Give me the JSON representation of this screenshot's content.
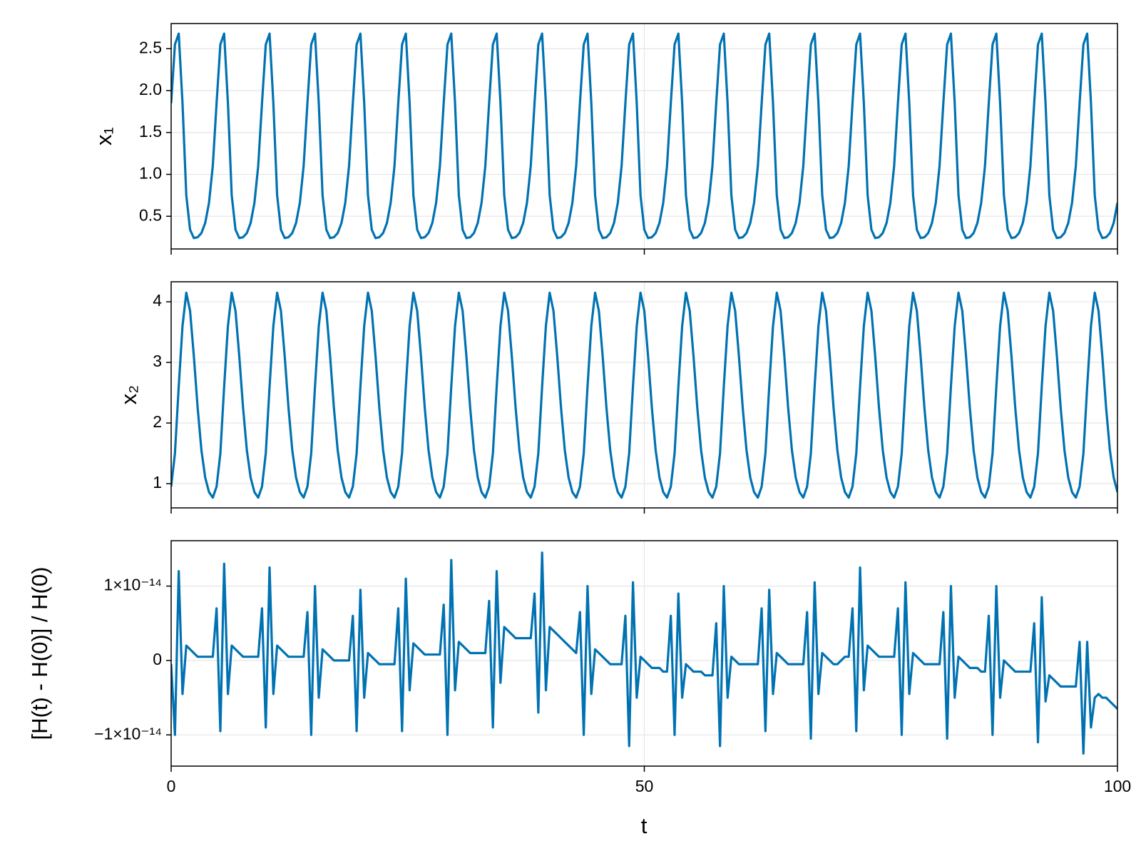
{
  "chart_data": {
    "type": "line",
    "xlabel": "t",
    "xlim": [
      0,
      100
    ],
    "xticks": [
      0,
      50,
      100
    ],
    "grid": true,
    "x": [
      0,
      0.4,
      0.8,
      1.2,
      1.6,
      2,
      2.4,
      2.8,
      3.2,
      3.6,
      4,
      4.4,
      4.8,
      5.2,
      5.6,
      6,
      6.4,
      6.8,
      7.2,
      7.6,
      8,
      8.4,
      8.8,
      9.2,
      9.6,
      10,
      10.4,
      10.8,
      11.2,
      11.6,
      12,
      12.4,
      12.8,
      13.2,
      13.6,
      14,
      14.4,
      14.8,
      15.2,
      15.6,
      16,
      16.4,
      16.8,
      17.2,
      17.6,
      18,
      18.4,
      18.8,
      19.2,
      19.6,
      20,
      20.4,
      20.8,
      21.2,
      21.6,
      22,
      22.4,
      22.8,
      23.2,
      23.6,
      24,
      24.4,
      24.8,
      25.2,
      25.6,
      26,
      26.4,
      26.8,
      27.2,
      27.6,
      28,
      28.4,
      28.8,
      29.2,
      29.6,
      30,
      30.4,
      30.8,
      31.2,
      31.6,
      32,
      32.4,
      32.8,
      33.2,
      33.6,
      34,
      34.4,
      34.8,
      35.2,
      35.6,
      36,
      36.4,
      36.8,
      37.2,
      37.6,
      38,
      38.4,
      38.8,
      39.2,
      39.6,
      40,
      40.4,
      40.8,
      41.2,
      41.6,
      42,
      42.4,
      42.8,
      43.2,
      43.6,
      44,
      44.4,
      44.8,
      45.2,
      45.6,
      46,
      46.4,
      46.8,
      47.2,
      47.6,
      48,
      48.4,
      48.8,
      49.2,
      49.6,
      50,
      50.4,
      50.8,
      51.2,
      51.6,
      52,
      52.4,
      52.8,
      53.2,
      53.6,
      54,
      54.4,
      54.8,
      55.2,
      55.6,
      56,
      56.4,
      56.8,
      57.2,
      57.6,
      58,
      58.4,
      58.8,
      59.2,
      59.6,
      60,
      60.4,
      60.8,
      61.2,
      61.6,
      62,
      62.4,
      62.8,
      63.2,
      63.6,
      64,
      64.4,
      64.8,
      65.2,
      65.6,
      66,
      66.4,
      66.8,
      67.2,
      67.6,
      68,
      68.4,
      68.8,
      69.2,
      69.6,
      70,
      70.4,
      70.8,
      71.2,
      71.6,
      72,
      72.4,
      72.8,
      73.2,
      73.6,
      74,
      74.4,
      74.8,
      75.2,
      75.6,
      76,
      76.4,
      76.8,
      77.2,
      77.6,
      78,
      78.4,
      78.8,
      79.2,
      79.6,
      80,
      80.4,
      80.8,
      81.2,
      81.6,
      82,
      82.4,
      82.8,
      83.2,
      83.6,
      84,
      84.4,
      84.8,
      85.2,
      85.6,
      86,
      86.4,
      86.8,
      87.2,
      87.6,
      88,
      88.4,
      88.8,
      89.2,
      89.6,
      90,
      90.4,
      90.8,
      91.2,
      91.6,
      92,
      92.4,
      92.8,
      93.2,
      93.6,
      94,
      94.4,
      94.8,
      95.2,
      95.6,
      96,
      96.4,
      96.8,
      97.2,
      97.6,
      98,
      98.4,
      98.8,
      99.2,
      99.6,
      100
    ],
    "series": [
      {
        "ylabel": "x₁",
        "color": "#0072b2",
        "ylim": [
          0.11,
          2.8
        ],
        "yticks": [
          0.5,
          {
            "value": 1,
            "label": "1.0"
          },
          1.5,
          {
            "value": 2,
            "label": "2.0"
          },
          2.5
        ],
        "values": [
          1.85,
          2.55,
          2.68,
          1.85,
          0.75,
          0.34,
          0.24,
          0.25,
          0.3,
          0.42,
          0.66,
          1.1,
          1.85,
          2.55,
          2.68,
          1.85,
          0.75,
          0.34,
          0.24,
          0.25,
          0.3,
          0.42,
          0.66,
          1.1,
          1.85,
          2.55,
          2.68,
          1.85,
          0.75,
          0.34,
          0.24,
          0.25,
          0.3,
          0.42,
          0.66,
          1.1,
          1.85,
          2.55,
          2.68,
          1.85,
          0.75,
          0.34,
          0.24,
          0.25,
          0.3,
          0.42,
          0.66,
          1.1,
          1.85,
          2.55,
          2.68,
          1.85,
          0.75,
          0.34,
          0.24,
          0.25,
          0.3,
          0.42,
          0.66,
          1.1,
          1.85,
          2.55,
          2.68,
          1.85,
          0.75,
          0.34,
          0.24,
          0.25,
          0.3,
          0.42,
          0.66,
          1.1,
          1.85,
          2.55,
          2.68,
          1.85,
          0.75,
          0.34,
          0.24,
          0.25,
          0.3,
          0.42,
          0.66,
          1.1,
          1.85,
          2.55,
          2.68,
          1.85,
          0.75,
          0.34,
          0.24,
          0.25,
          0.3,
          0.42,
          0.66,
          1.1,
          1.85,
          2.55,
          2.68,
          1.85,
          0.75,
          0.34,
          0.24,
          0.25,
          0.3,
          0.42,
          0.66,
          1.1,
          1.85,
          2.55,
          2.68,
          1.85,
          0.75,
          0.34,
          0.24,
          0.25,
          0.3,
          0.42,
          0.66,
          1.1,
          1.85,
          2.55,
          2.68,
          1.85,
          0.75,
          0.34,
          0.24,
          0.25,
          0.3,
          0.42,
          0.66,
          1.1,
          1.85,
          2.55,
          2.68,
          1.85,
          0.75,
          0.34,
          0.24,
          0.25,
          0.3,
          0.42,
          0.66,
          1.1,
          1.85,
          2.55,
          2.68,
          1.85,
          0.75,
          0.34,
          0.24,
          0.25,
          0.3,
          0.42,
          0.66,
          1.1,
          1.85,
          2.55,
          2.68,
          1.85,
          0.75,
          0.34,
          0.24,
          0.25,
          0.3,
          0.42,
          0.66,
          1.1,
          1.85,
          2.55,
          2.68,
          1.85,
          0.75,
          0.34,
          0.24,
          0.25,
          0.3,
          0.42,
          0.66,
          1.1,
          1.85,
          2.55,
          2.68,
          1.85,
          0.75,
          0.34,
          0.24,
          0.25,
          0.3,
          0.42,
          0.66,
          1.1,
          1.85,
          2.55,
          2.68,
          1.85,
          0.75,
          0.34,
          0.24,
          0.25,
          0.3,
          0.42,
          0.66,
          1.1,
          1.85,
          2.55,
          2.68,
          1.85,
          0.75,
          0.34,
          0.24,
          0.25,
          0.3,
          0.42,
          0.66,
          1.1,
          1.85,
          2.55,
          2.68,
          1.85,
          0.75,
          0.34,
          0.24,
          0.25,
          0.3,
          0.42,
          0.66,
          1.1,
          1.85,
          2.55,
          2.68,
          1.85,
          0.75,
          0.34,
          0.24,
          0.25,
          0.3,
          0.42,
          0.66,
          1.1,
          1.85,
          2.55,
          2.68,
          1.85,
          0.75,
          0.34,
          0.24,
          0.25,
          0.3,
          0.42,
          0.66
        ]
      },
      {
        "ylabel": "x₂",
        "color": "#0072b2",
        "ylim": [
          0.6,
          4.33
        ],
        "yticks": [
          1,
          2,
          3,
          4
        ],
        "values": [
          0.95,
          1.5,
          2.6,
          3.6,
          4.15,
          3.85,
          3.1,
          2.25,
          1.55,
          1.1,
          0.86,
          0.77,
          0.95,
          1.5,
          2.6,
          3.6,
          4.15,
          3.85,
          3.1,
          2.25,
          1.55,
          1.1,
          0.86,
          0.77,
          0.95,
          1.5,
          2.6,
          3.6,
          4.15,
          3.85,
          3.1,
          2.25,
          1.55,
          1.1,
          0.86,
          0.77,
          0.95,
          1.5,
          2.6,
          3.6,
          4.15,
          3.85,
          3.1,
          2.25,
          1.55,
          1.1,
          0.86,
          0.77,
          0.95,
          1.5,
          2.6,
          3.6,
          4.15,
          3.85,
          3.1,
          2.25,
          1.55,
          1.1,
          0.86,
          0.77,
          0.95,
          1.5,
          2.6,
          3.6,
          4.15,
          3.85,
          3.1,
          2.25,
          1.55,
          1.1,
          0.86,
          0.77,
          0.95,
          1.5,
          2.6,
          3.6,
          4.15,
          3.85,
          3.1,
          2.25,
          1.55,
          1.1,
          0.86,
          0.77,
          0.95,
          1.5,
          2.6,
          3.6,
          4.15,
          3.85,
          3.1,
          2.25,
          1.55,
          1.1,
          0.86,
          0.77,
          0.95,
          1.5,
          2.6,
          3.6,
          4.15,
          3.85,
          3.1,
          2.25,
          1.55,
          1.1,
          0.86,
          0.77,
          0.95,
          1.5,
          2.6,
          3.6,
          4.15,
          3.85,
          3.1,
          2.25,
          1.55,
          1.1,
          0.86,
          0.77,
          0.95,
          1.5,
          2.6,
          3.6,
          4.15,
          3.85,
          3.1,
          2.25,
          1.55,
          1.1,
          0.86,
          0.77,
          0.95,
          1.5,
          2.6,
          3.6,
          4.15,
          3.85,
          3.1,
          2.25,
          1.55,
          1.1,
          0.86,
          0.77,
          0.95,
          1.5,
          2.6,
          3.6,
          4.15,
          3.85,
          3.1,
          2.25,
          1.55,
          1.1,
          0.86,
          0.77,
          0.95,
          1.5,
          2.6,
          3.6,
          4.15,
          3.85,
          3.1,
          2.25,
          1.55,
          1.1,
          0.86,
          0.77,
          0.95,
          1.5,
          2.6,
          3.6,
          4.15,
          3.85,
          3.1,
          2.25,
          1.55,
          1.1,
          0.86,
          0.77,
          0.95,
          1.5,
          2.6,
          3.6,
          4.15,
          3.85,
          3.1,
          2.25,
          1.55,
          1.1,
          0.86,
          0.77,
          0.95,
          1.5,
          2.6,
          3.6,
          4.15,
          3.85,
          3.1,
          2.25,
          1.55,
          1.1,
          0.86,
          0.77,
          0.95,
          1.5,
          2.6,
          3.6,
          4.15,
          3.85,
          3.1,
          2.25,
          1.55,
          1.1,
          0.86,
          0.77,
          0.95,
          1.5,
          2.6,
          3.6,
          4.15,
          3.85,
          3.1,
          2.25,
          1.55,
          1.1,
          0.86,
          0.77,
          0.95,
          1.5,
          2.6,
          3.6,
          4.15,
          3.85,
          3.1,
          2.25,
          1.55,
          1.1,
          0.86,
          0.77,
          0.95,
          1.5,
          2.6,
          3.6,
          4.15,
          3.85,
          3.1,
          2.25,
          1.55,
          1.1,
          0.86
        ]
      },
      {
        "ylabel": "[H(t) - H(0)] / H(0)",
        "color": "#0072b2",
        "ylim": [
          -1.42e-14,
          1.61e-14
        ],
        "yticks": [
          {
            "value": -1e-14,
            "label": "−1×10⁻¹⁴"
          },
          0,
          {
            "value": 1e-14,
            "label": "1×10⁻¹⁴"
          }
        ],
        "values": [
          -5e-16,
          -1e-14,
          1.2e-14,
          -4.5e-15,
          2e-15,
          1.5e-15,
          1e-15,
          5e-16,
          5e-16,
          5e-16,
          5e-16,
          5e-16,
          7e-15,
          -9.5e-15,
          1.3e-14,
          -4.5e-15,
          2e-15,
          1.5e-15,
          1e-15,
          5e-16,
          5e-16,
          5e-16,
          5e-16,
          5e-16,
          7e-15,
          -9e-15,
          1.25e-14,
          -4.5e-15,
          2e-15,
          1.5e-15,
          1e-15,
          5e-16,
          5e-16,
          5e-16,
          5e-16,
          5e-16,
          6.5e-15,
          -1e-14,
          1e-14,
          -5e-15,
          1.5e-15,
          1e-15,
          5e-16,
          0,
          0,
          0,
          0,
          0,
          6e-15,
          -9.5e-15,
          9.5e-15,
          -5e-15,
          1e-15,
          5e-16,
          0,
          -5e-16,
          -5e-16,
          -5e-16,
          -5e-16,
          -5e-16,
          7e-15,
          -9.5e-15,
          1.1e-14,
          -4e-15,
          2.3e-15,
          1.8e-15,
          1.3e-15,
          8e-16,
          8e-16,
          8e-16,
          8e-16,
          8e-16,
          7.5e-15,
          -1e-14,
          1.35e-14,
          -4e-15,
          2.5e-15,
          2e-15,
          1.5e-15,
          1e-15,
          1e-15,
          1e-15,
          1e-15,
          1e-15,
          8e-15,
          -9e-15,
          1.2e-14,
          -3e-15,
          4.5e-15,
          4e-15,
          3.5e-15,
          3e-15,
          3e-15,
          3e-15,
          3e-15,
          3e-15,
          9e-15,
          -7e-15,
          1.45e-14,
          -4e-15,
          4.5e-15,
          4e-15,
          3.5e-15,
          3e-15,
          2.5e-15,
          2e-15,
          1.5e-15,
          1e-15,
          6.5e-15,
          -1e-14,
          1e-14,
          -4.5e-15,
          1.5e-15,
          1e-15,
          5e-16,
          0,
          -5e-16,
          -5e-16,
          -5e-16,
          -5e-16,
          6e-15,
          -1.15e-14,
          1.05e-14,
          -5e-15,
          5e-16,
          0,
          -5e-16,
          -1e-15,
          -1e-15,
          -1e-15,
          -1.5e-15,
          -1.5e-15,
          6e-15,
          -1e-14,
          9e-15,
          -5e-15,
          -5e-16,
          -1e-15,
          -1.5e-15,
          -1.5e-15,
          -1.5e-15,
          -2e-15,
          -2e-15,
          -2e-15,
          5e-15,
          -1.15e-14,
          1e-14,
          -5e-15,
          5e-16,
          0,
          -5e-16,
          -5e-16,
          -5e-16,
          -5e-16,
          -5e-16,
          -5e-16,
          7e-15,
          -9.5e-15,
          9.5e-15,
          -4.5e-15,
          1e-15,
          5e-16,
          0,
          -5e-16,
          -5e-16,
          -5e-16,
          -5e-16,
          -5e-16,
          6.5e-15,
          -1.05e-14,
          1.05e-14,
          -4.5e-15,
          1e-15,
          5e-16,
          0,
          -5e-16,
          -5e-16,
          0,
          5e-16,
          5e-16,
          7e-15,
          -9.5e-15,
          1.25e-14,
          -4e-15,
          2e-15,
          1.5e-15,
          1e-15,
          5e-16,
          5e-16,
          5e-16,
          5e-16,
          5e-16,
          7e-15,
          -1e-14,
          1.05e-14,
          -4.5e-15,
          1e-15,
          5e-16,
          0,
          -5e-16,
          -5e-16,
          -5e-16,
          -5e-16,
          -5e-16,
          6.5e-15,
          -1.05e-14,
          1e-14,
          -5e-15,
          5e-16,
          0,
          -5e-16,
          -1e-15,
          -1e-15,
          -1e-15,
          -1.5e-15,
          -1.5e-15,
          6e-15,
          -1e-14,
          1e-14,
          -5e-15,
          0,
          -5e-16,
          -1e-15,
          -1.5e-15,
          -1.5e-15,
          -1.5e-15,
          -1.5e-15,
          -1.5e-15,
          5e-15,
          -1.1e-14,
          8.5e-15,
          -5.5e-15,
          -2e-15,
          -2.5e-15,
          -3e-15,
          -3.5e-15,
          -3.5e-15,
          -3.5e-15,
          -3.5e-15,
          -3.5e-15,
          2.5e-15,
          -1.25e-14,
          2.5e-15,
          -9e-15,
          -5e-15,
          -4.5e-15,
          -5e-15,
          -5e-15,
          -5.5e-15,
          -6e-15,
          -6.5e-15
        ]
      }
    ]
  }
}
